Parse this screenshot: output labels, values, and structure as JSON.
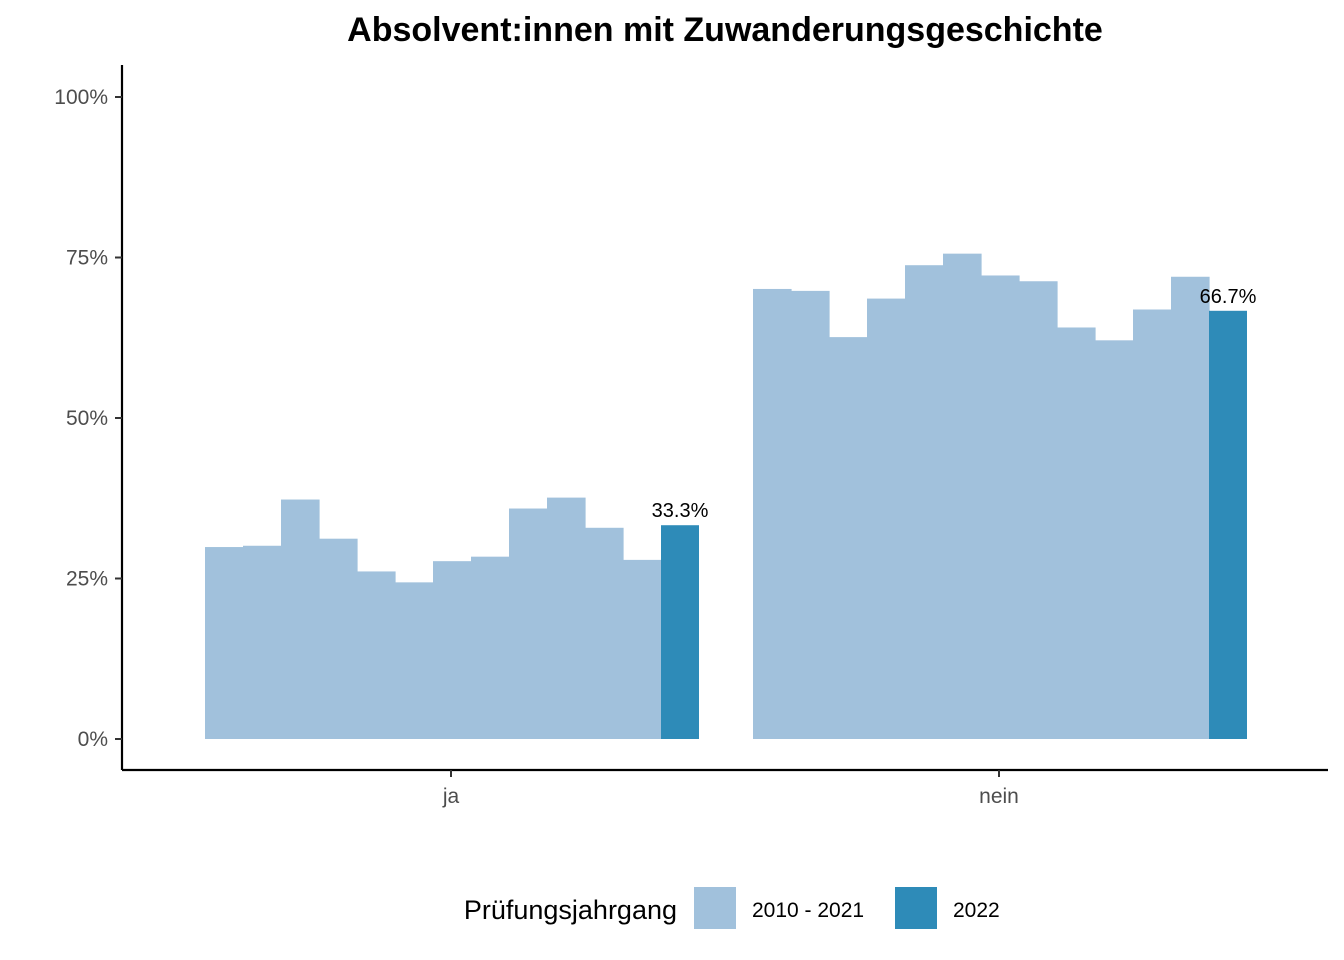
{
  "chart_data": {
    "type": "bar",
    "title": "Absolvent:innen mit Zuwanderungsgeschichte",
    "xlabel": "",
    "ylabel": "",
    "ylim": [
      0,
      100
    ],
    "yticks": [
      0,
      25,
      50,
      75,
      100
    ],
    "ytick_labels": [
      "0%",
      "25%",
      "50%",
      "75%",
      "100%"
    ],
    "categories": [
      "ja",
      "nein"
    ],
    "legend": {
      "title": "Prüfungsjahrgang",
      "position": "bottom",
      "entries": [
        {
          "label": "2010 - 2021",
          "color": "#a1c1dc"
        },
        {
          "label": "2022",
          "color": "#2e8bb8"
        }
      ]
    },
    "series": [
      {
        "name": "2010 - 2021",
        "color": "#a1c1dc",
        "values": [
          [
            29.9,
            30.1,
            37.3,
            31.2,
            26.1,
            24.4,
            27.7,
            28.4,
            35.9,
            37.6,
            32.9,
            27.9
          ],
          [
            70.1,
            69.8,
            62.6,
            68.6,
            73.8,
            75.6,
            72.2,
            71.3,
            64.1,
            62.1,
            66.9,
            72.0
          ]
        ]
      },
      {
        "name": "2022",
        "color": "#2e8bb8",
        "values": [
          33.3,
          66.7
        ],
        "data_labels": [
          "33.3%",
          "66.7%"
        ]
      }
    ],
    "grid": false
  }
}
